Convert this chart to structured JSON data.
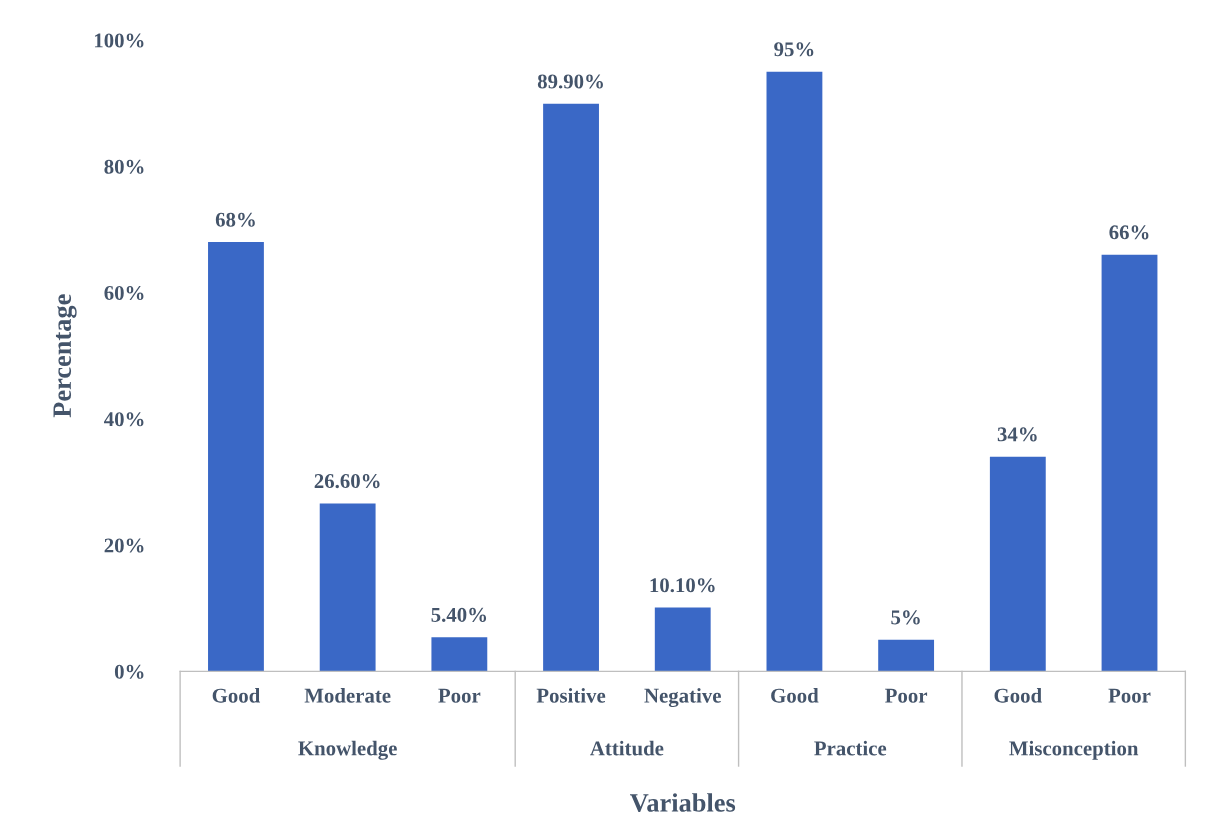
{
  "chart_data": {
    "type": "bar",
    "categories": [
      "Good",
      "Moderate",
      "Poor",
      "Positive",
      "Negative",
      "Good",
      "Poor",
      "Good",
      "Poor"
    ],
    "values": [
      68,
      26.6,
      5.4,
      89.9,
      10.1,
      95,
      5,
      34,
      66
    ],
    "value_labels": [
      "68%",
      "26.60%",
      "5.40%",
      "89.90%",
      "10.10%",
      "95%",
      "5%",
      "34%",
      "66%"
    ],
    "color": "#3a68c6",
    "xlabel": "Variables",
    "ylabel": "Percentage",
    "annotations": [
      "Knowledge",
      "Attitude",
      "Practice",
      "Misconception"
    ],
    "ylim": [
      0,
      100
    ],
    "yticks": [
      {
        "value": 0,
        "label": "0%"
      },
      {
        "value": 20,
        "label": "20%"
      },
      {
        "value": 40,
        "label": "40%"
      },
      {
        "value": 60,
        "label": "60%"
      },
      {
        "value": 80,
        "label": "80%"
      },
      {
        "value": 100,
        "label": "100%"
      }
    ],
    "grid": false
  }
}
